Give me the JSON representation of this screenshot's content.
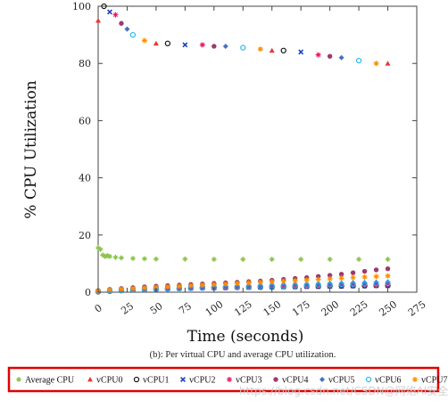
{
  "chart_data": {
    "type": "scatter",
    "xlabel": "Time (seconds)",
    "ylabel": "% CPU Utilization",
    "xlim": [
      0,
      275
    ],
    "ylim": [
      0,
      100
    ],
    "xticks": [
      0,
      25,
      50,
      75,
      100,
      125,
      150,
      175,
      200,
      225,
      250,
      275
    ],
    "yticks": [
      0,
      20,
      40,
      60,
      80,
      100
    ],
    "caption": "(b): Per virtual CPU and average CPU utilization.",
    "legend_position": "bottom",
    "series": [
      {
        "name": "Average CPU",
        "marker": "star",
        "color": "#8bc34a",
        "x": [
          0,
          2,
          4,
          6,
          8,
          10,
          15,
          20,
          30,
          40,
          50,
          75,
          100,
          125,
          150,
          175,
          200,
          225,
          250
        ],
        "y": [
          15.5,
          15,
          13,
          12.5,
          12.8,
          12.5,
          12.2,
          12,
          11.8,
          11.7,
          11.6,
          11.6,
          11.5,
          11.5,
          11.5,
          11.5,
          11.5,
          11.5,
          11.5
        ]
      },
      {
        "name": "vCPU0",
        "marker": "triangle",
        "color": "#e53935",
        "x": [
          0,
          10,
          20,
          30,
          40,
          50,
          60,
          70,
          80,
          90,
          100,
          110,
          120,
          130,
          140,
          150,
          160,
          170,
          180,
          190,
          200,
          210,
          220,
          230,
          240,
          250
        ],
        "y": [
          0.5,
          0.8,
          1,
          1.2,
          1.5,
          1.5,
          1.8,
          2,
          2,
          2.2,
          2.2,
          2.3,
          2.4,
          2.5,
          2.5,
          2.6,
          2.6,
          2.7,
          2.8,
          2.8,
          2.9,
          3,
          3,
          3,
          3.1,
          3.2
        ]
      },
      {
        "name": "vCPU1",
        "marker": "circle-open",
        "color": "#111111",
        "x": [
          0,
          10,
          20,
          30,
          40,
          50,
          60,
          70,
          80,
          90,
          100,
          110,
          120,
          130,
          140,
          150,
          160,
          170,
          180,
          190,
          200,
          210,
          220,
          230,
          240,
          250
        ],
        "y": [
          0.2,
          0.4,
          0.6,
          0.8,
          1,
          1.1,
          1.2,
          1.3,
          1.4,
          1.5,
          1.6,
          1.6,
          1.7,
          1.8,
          1.8,
          1.9,
          2,
          2,
          2.1,
          2.1,
          2.2,
          2.2,
          2.3,
          2.3,
          2.4,
          2.4
        ]
      },
      {
        "name": "vCPU2",
        "marker": "cross",
        "color": "#1e3fbf",
        "x": [
          0,
          10,
          20,
          30,
          40,
          50,
          60,
          70,
          80,
          90,
          100,
          110,
          120,
          130,
          140,
          150,
          160,
          170,
          180,
          190,
          200,
          210,
          220,
          230,
          240,
          250
        ],
        "y": [
          0.3,
          0.5,
          0.7,
          0.9,
          1,
          1.1,
          1.2,
          1.3,
          1.4,
          1.5,
          1.5,
          1.6,
          1.7,
          1.7,
          1.8,
          1.8,
          1.9,
          1.9,
          2,
          2,
          2.1,
          2.1,
          2.2,
          2.2,
          2.3,
          2.3
        ]
      },
      {
        "name": "vCPU3",
        "marker": "asterisk",
        "color": "#e91e63",
        "x": [
          0,
          10,
          20,
          30,
          40,
          50,
          60,
          70,
          80,
          90,
          100,
          110,
          120,
          130,
          140,
          150,
          160,
          170,
          180,
          190,
          200,
          210,
          220,
          230,
          240,
          250
        ],
        "y": [
          0.4,
          0.6,
          0.8,
          1,
          1.1,
          1.2,
          1.3,
          1.4,
          1.5,
          1.6,
          1.7,
          1.8,
          1.9,
          2,
          2,
          2.1,
          2.1,
          2.2,
          2.2,
          2.3,
          2.3,
          2.4,
          2.4,
          2.5,
          2.5,
          2.6
        ]
      },
      {
        "name": "vCPU4",
        "marker": "circle-filled",
        "color": "#9c3a6e",
        "x": [
          0,
          10,
          20,
          30,
          40,
          50,
          60,
          70,
          80,
          90,
          100,
          110,
          120,
          130,
          140,
          150,
          160,
          170,
          180,
          190,
          200,
          210,
          220,
          230,
          240,
          250
        ],
        "y": [
          0.6,
          1,
          1.3,
          1.6,
          1.9,
          2.1,
          2.3,
          2.5,
          2.7,
          2.9,
          3.1,
          3.3,
          3.5,
          3.7,
          3.9,
          4.2,
          4.5,
          4.8,
          5.1,
          5.5,
          5.9,
          6.3,
          6.8,
          7.3,
          7.8,
          8.2
        ]
      },
      {
        "name": "vCPU5",
        "marker": "diamond",
        "color": "#4472c4",
        "x": [
          0,
          10,
          20,
          30,
          40,
          50,
          60,
          70,
          80,
          90,
          100,
          110,
          120,
          130,
          140,
          150,
          160,
          170,
          180,
          190,
          200,
          210,
          220,
          230,
          240,
          250
        ],
        "y": [
          0.5,
          0.8,
          1,
          1.2,
          1.4,
          1.6,
          1.7,
          1.8,
          1.9,
          2,
          2.1,
          2.2,
          2.3,
          2.4,
          2.5,
          2.6,
          2.7,
          2.8,
          2.9,
          3,
          3.1,
          3.2,
          3.3,
          3.4,
          3.5,
          3.6
        ]
      },
      {
        "name": "vCPU6",
        "marker": "circle-open",
        "color": "#29b6f6",
        "x": [
          0,
          10,
          20,
          30,
          40,
          50,
          60,
          70,
          80,
          90,
          100,
          110,
          120,
          130,
          140,
          150,
          160,
          170,
          180,
          190,
          200,
          210,
          220,
          230,
          240,
          250
        ],
        "y": [
          0.3,
          0.5,
          0.7,
          0.9,
          1,
          1.1,
          1.2,
          1.3,
          1.4,
          1.5,
          1.6,
          1.7,
          1.8,
          1.9,
          2,
          2.1,
          2.2,
          2.3,
          2.4,
          2.5,
          2.6,
          2.7,
          2.8,
          2.9,
          3,
          3.1
        ]
      },
      {
        "name": "vCPU7",
        "marker": "asterisk",
        "color": "#ff8f00",
        "x": [
          0,
          10,
          20,
          30,
          40,
          50,
          60,
          70,
          80,
          90,
          100,
          110,
          120,
          130,
          140,
          150,
          160,
          170,
          180,
          190,
          200,
          210,
          220,
          230,
          240,
          250
        ],
        "y": [
          0.5,
          0.8,
          1.1,
          1.3,
          1.5,
          1.7,
          1.9,
          2.1,
          2.3,
          2.5,
          2.7,
          2.9,
          3.1,
          3.3,
          3.5,
          3.7,
          3.9,
          4.1,
          4.3,
          4.5,
          4.7,
          4.9,
          5.1,
          5.3,
          5.5,
          5.7
        ]
      },
      {
        "name": "",
        "role": "idle-core",
        "marker": "mixed",
        "x": [
          0,
          5,
          10,
          15,
          20,
          25,
          30,
          40,
          50,
          60,
          75,
          90,
          100,
          110,
          125,
          140,
          150,
          160,
          175,
          190,
          200,
          210,
          225,
          240,
          250
        ],
        "y": [
          95,
          100,
          98,
          97,
          94,
          92,
          90,
          88,
          87,
          87,
          86.5,
          86.5,
          86,
          86,
          85.5,
          85,
          84.5,
          84.5,
          84,
          83,
          82.5,
          82,
          81,
          80,
          80
        ]
      }
    ],
    "legend": [
      "Average CPU",
      "vCPU0",
      "vCPU1",
      "vCPU2",
      "vCPU3",
      "vCPU4",
      "vCPU5",
      "vCPU6",
      "vCPU7"
    ]
  },
  "watermark": "https://blog.csdn.net/CSDN@网络AI安全之家"
}
